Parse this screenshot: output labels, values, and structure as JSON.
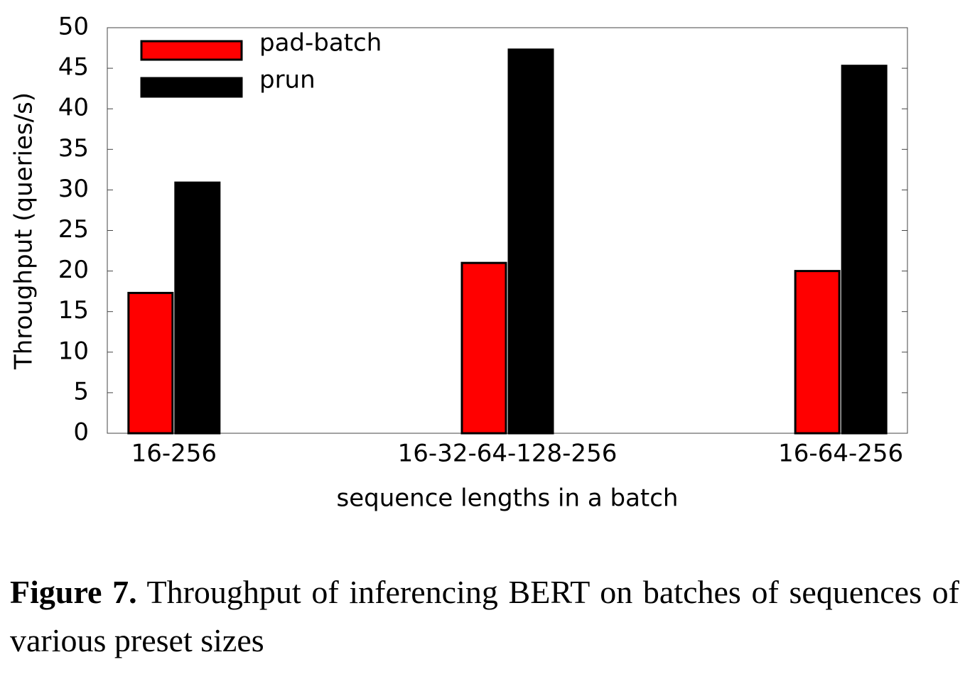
{
  "chart_data": {
    "type": "bar",
    "categories": [
      "16-256",
      "16-32-64-128-256",
      "16-64-256"
    ],
    "series": [
      {
        "name": "pad-batch",
        "color": "#ff0000",
        "values": [
          17.3,
          21,
          20
        ]
      },
      {
        "name": "prun",
        "color": "#000000",
        "values": [
          30.9,
          47.3,
          45.3
        ]
      }
    ],
    "x_label": "sequence lengths in a batch",
    "y_label": "Throughput (queries/s)",
    "ylim": [
      0,
      50
    ],
    "yticks": [
      0,
      5,
      10,
      15,
      20,
      25,
      30,
      35,
      40,
      45,
      50
    ],
    "legend": "top-left",
    "grid": false
  },
  "caption": {
    "label": "Figure 7.",
    "text": "Throughput of inferencing BERT on batches of sequences of various preset sizes"
  }
}
